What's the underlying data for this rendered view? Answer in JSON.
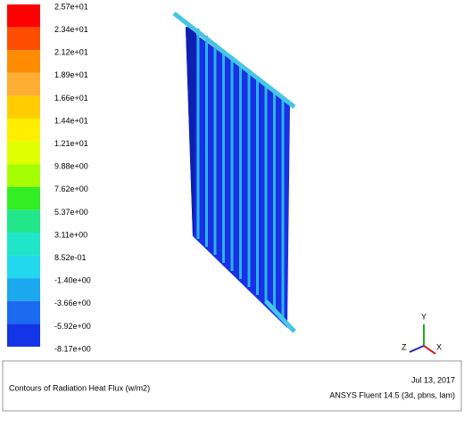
{
  "legend": {
    "labels": [
      "2.57e+01",
      "2.34e+01",
      "2.12e+01",
      "1.89e+01",
      "1.66e+01",
      "1.44e+01",
      "1.21e+01",
      "9.88e+00",
      "7.62e+00",
      "5.37e+00",
      "3.11e+00",
      "8.52e-01",
      "-1.40e+00",
      "-3.66e+00",
      "-5.92e+00",
      "-8.17e+00"
    ]
  },
  "axes": {
    "y": "Y",
    "z": "Z",
    "x": "X"
  },
  "footer": {
    "title": "Contours of Radiation Heat Flux (w/m2)",
    "date": "Jul 13, 2017",
    "software": "ANSYS Fluent 14.5 (3d, pbns, lam)"
  }
}
